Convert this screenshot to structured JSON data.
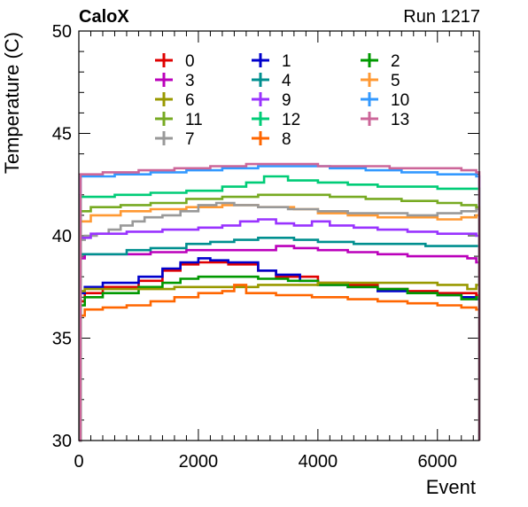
{
  "header": {
    "left": "CaloX",
    "right": "Run 1217"
  },
  "chart_data": {
    "type": "line",
    "xlabel": "Event",
    "ylabel": "Temperature (C)",
    "xlim": [
      0,
      6700
    ],
    "ylim": [
      30,
      50
    ],
    "xticks": [
      "0",
      "2000",
      "4000",
      "6000"
    ],
    "yticks": [
      "30",
      "35",
      "40",
      "45",
      "50"
    ],
    "series": [
      {
        "name": "0",
        "color": "#e00000",
        "x": [
          0,
          30,
          100,
          400,
          1000,
          1400,
          1700,
          2000,
          2200,
          2500,
          3000,
          3300,
          3700,
          4000,
          4500,
          5000,
          5500,
          6000,
          6400,
          6650,
          6700
        ],
        "y": [
          30,
          36.8,
          37.2,
          37.5,
          37.8,
          38.3,
          38.6,
          38.7,
          38.7,
          38.6,
          38.3,
          38.0,
          38.0,
          37.7,
          37.6,
          37.4,
          37.3,
          37.2,
          37.2,
          37.1,
          30
        ]
      },
      {
        "name": "1",
        "color": "#0000cc",
        "x": [
          0,
          30,
          100,
          400,
          1000,
          1400,
          1700,
          2000,
          2200,
          2500,
          3000,
          3300,
          3700,
          4000,
          4500,
          5000,
          5500,
          6000,
          6400,
          6650,
          6700
        ],
        "y": [
          30,
          37.2,
          37.5,
          37.7,
          38.0,
          38.4,
          38.7,
          38.9,
          38.8,
          38.7,
          38.3,
          38.1,
          37.8,
          37.6,
          37.5,
          37.3,
          37.2,
          37.1,
          37.0,
          36.9,
          30
        ]
      },
      {
        "name": "2",
        "color": "#009900",
        "x": [
          0,
          30,
          100,
          400,
          1000,
          1400,
          1700,
          2000,
          2500,
          3000,
          3500,
          4000,
          4500,
          5000,
          5500,
          6000,
          6400,
          6650,
          6700
        ],
        "y": [
          30,
          36.6,
          37.0,
          37.2,
          37.5,
          37.7,
          37.9,
          38.0,
          38.0,
          37.9,
          37.8,
          37.6,
          37.5,
          37.4,
          37.2,
          37.1,
          36.9,
          37.0,
          30
        ]
      },
      {
        "name": "3",
        "color": "#bb00bb",
        "x": [
          0,
          30,
          100,
          600,
          1200,
          1800,
          2400,
          3000,
          3300,
          3600,
          4000,
          4500,
          5000,
          5500,
          6000,
          6500,
          6650,
          6700
        ],
        "y": [
          30,
          38.9,
          39.1,
          39.1,
          39.2,
          39.3,
          39.3,
          39.3,
          39.5,
          39.4,
          39.3,
          39.2,
          39.1,
          39.0,
          39.0,
          38.9,
          38.7,
          30
        ]
      },
      {
        "name": "4",
        "color": "#008f8f",
        "x": [
          0,
          30,
          200,
          800,
          1200,
          1800,
          2200,
          2600,
          3000,
          3600,
          4000,
          4600,
          5200,
          5800,
          6200,
          6650,
          6700
        ],
        "y": [
          30,
          39.1,
          39.1,
          39.3,
          39.4,
          39.6,
          39.7,
          39.8,
          39.9,
          39.8,
          39.7,
          39.6,
          39.6,
          39.5,
          39.5,
          39.5,
          30
        ]
      },
      {
        "name": "5",
        "color": "#ff9933",
        "x": [
          0,
          30,
          200,
          700,
          1200,
          1800,
          2400,
          3000,
          3600,
          4000,
          4500,
          5000,
          5500,
          6000,
          6400,
          6650,
          6700
        ],
        "y": [
          30,
          40.7,
          41.0,
          41.2,
          41.3,
          41.4,
          41.5,
          41.4,
          41.3,
          41.1,
          41.0,
          40.9,
          40.9,
          40.8,
          40.9,
          41.0,
          30
        ]
      },
      {
        "name": "6",
        "color": "#999900",
        "x": [
          0,
          30,
          100,
          800,
          1600,
          2400,
          3000,
          4000,
          5000,
          6000,
          6500,
          6650,
          6700
        ],
        "y": [
          30,
          37.3,
          37.4,
          37.4,
          37.5,
          37.5,
          37.6,
          37.7,
          37.7,
          37.6,
          37.4,
          37.6,
          30
        ]
      },
      {
        "name": "7",
        "color": "#999999",
        "x": [
          0,
          30,
          100,
          300,
          500,
          700,
          900,
          1100,
          1400,
          1700,
          2000,
          2300,
          2600,
          3000,
          3500,
          4000,
          4500,
          5000,
          5500,
          6000,
          6400,
          6650,
          6700
        ],
        "y": [
          30,
          39.8,
          40.0,
          40.1,
          40.3,
          40.5,
          40.7,
          40.9,
          41.0,
          41.2,
          41.5,
          41.6,
          41.5,
          41.4,
          41.3,
          41.2,
          41.1,
          41.1,
          41.0,
          41.1,
          41.2,
          41.3,
          30
        ]
      },
      {
        "name": "8",
        "color": "#ff6600",
        "x": [
          0,
          30,
          100,
          400,
          800,
          1200,
          1600,
          2000,
          2400,
          2600,
          2800,
          3300,
          3900,
          4500,
          5000,
          5500,
          6000,
          6400,
          6650,
          6700
        ],
        "y": [
          30,
          36.1,
          36.4,
          36.5,
          36.6,
          36.8,
          37.0,
          37.2,
          37.3,
          37.6,
          37.2,
          37.1,
          37.0,
          36.9,
          36.8,
          36.7,
          36.6,
          36.5,
          36.4,
          30
        ]
      },
      {
        "name": "9",
        "color": "#9933ff",
        "x": [
          0,
          30,
          200,
          800,
          1400,
          2000,
          2400,
          2700,
          3000,
          3300,
          3600,
          3900,
          4200,
          4600,
          5000,
          5500,
          6000,
          6400,
          6650,
          6700
        ],
        "y": [
          30,
          39.9,
          40.1,
          40.2,
          40.3,
          40.4,
          40.5,
          40.7,
          40.8,
          40.6,
          40.5,
          40.7,
          40.5,
          40.4,
          40.3,
          40.2,
          40.1,
          40.1,
          40.0,
          30
        ]
      },
      {
        "name": "10",
        "color": "#3399ff",
        "x": [
          0,
          30,
          600,
          1200,
          1800,
          2400,
          3000,
          3600,
          4200,
          4800,
          5400,
          6000,
          6650,
          6700
        ],
        "y": [
          30,
          42.9,
          43.0,
          43.1,
          43.2,
          43.3,
          43.4,
          43.4,
          43.3,
          43.2,
          43.1,
          43.0,
          42.9,
          30
        ]
      },
      {
        "name": "11",
        "color": "#77aa22",
        "x": [
          0,
          30,
          200,
          700,
          1200,
          1800,
          2400,
          3000,
          3600,
          4200,
          4800,
          5400,
          6000,
          6400,
          6650,
          6700
        ],
        "y": [
          30,
          41.2,
          41.4,
          41.5,
          41.6,
          41.8,
          41.9,
          42.0,
          42.0,
          41.9,
          41.8,
          41.7,
          41.6,
          41.5,
          41.4,
          30
        ]
      },
      {
        "name": "12",
        "color": "#00cc77",
        "x": [
          0,
          30,
          600,
          1200,
          1800,
          2400,
          2800,
          3100,
          3500,
          4000,
          4500,
          5000,
          5500,
          6000,
          6650,
          6700
        ],
        "y": [
          30,
          41.9,
          42.0,
          42.1,
          42.2,
          42.4,
          42.6,
          42.9,
          42.7,
          42.6,
          42.5,
          42.4,
          42.4,
          42.3,
          42.3,
          30
        ]
      },
      {
        "name": "13",
        "color": "#cc6699",
        "x": [
          0,
          30,
          400,
          1000,
          1600,
          2200,
          2800,
          3400,
          4000,
          4600,
          5200,
          5800,
          6400,
          6650,
          6700
        ],
        "y": [
          30,
          43.0,
          43.1,
          43.2,
          43.3,
          43.4,
          43.5,
          43.5,
          43.4,
          43.4,
          43.3,
          43.3,
          43.2,
          43.1,
          30
        ]
      }
    ],
    "legend": {
      "placement": "top",
      "columns": 3,
      "order": [
        "0",
        "1",
        "2",
        "3",
        "4",
        "5",
        "6",
        "9",
        "10",
        "11",
        "12",
        "13",
        "7",
        "8"
      ]
    }
  }
}
